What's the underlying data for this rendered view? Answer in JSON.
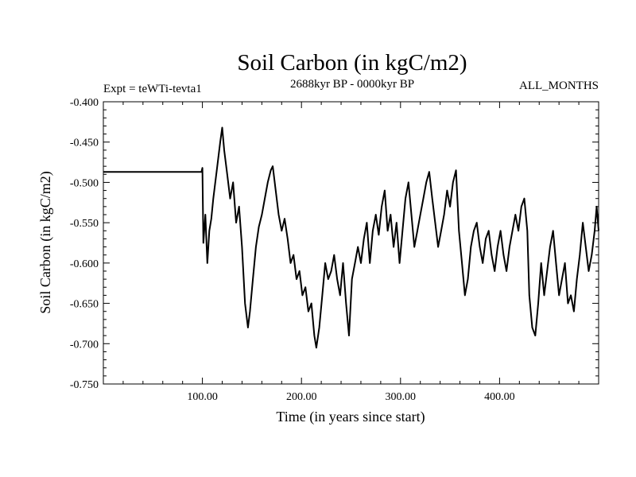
{
  "chart_data": {
    "type": "line",
    "title": "Soil Carbon (in kgC/m2)",
    "subtitle_left": "Expt = teWTi-tevta1",
    "subtitle_center": "2688kyr BP - 0000kyr BP",
    "subtitle_right": "ALL_MONTHS",
    "xlabel": "Time (in years since start)",
    "ylabel": "Soil Carbon (in kgC/m2)",
    "xlim": [
      0,
      500
    ],
    "ylim": [
      -0.75,
      -0.4
    ],
    "x_ticks": [
      100,
      200,
      300,
      400
    ],
    "x_tick_labels": [
      "100.00",
      "200.00",
      "300.00",
      "400.00"
    ],
    "y_ticks": [
      -0.4,
      -0.45,
      -0.5,
      -0.55,
      -0.6,
      -0.65,
      -0.7,
      -0.75
    ],
    "y_tick_labels": [
      "-0.400",
      "-0.450",
      "-0.500",
      "-0.550",
      "-0.600",
      "-0.650",
      "-0.700",
      "-0.750"
    ],
    "series": [
      {
        "name": "Soil Carbon",
        "x": [
          0,
          99,
          100,
          101,
          103,
          105,
          107,
          109,
          111,
          113,
          115,
          118,
          120,
          122,
          125,
          128,
          131,
          134,
          137,
          140,
          143,
          146,
          148,
          151,
          154,
          157,
          160,
          163,
          166,
          169,
          171,
          174,
          177,
          180,
          183,
          186,
          189,
          192,
          195,
          198,
          201,
          204,
          207,
          210,
          213,
          215,
          218,
          221,
          224,
          227,
          230,
          233,
          236,
          239,
          242,
          245,
          248,
          251,
          254,
          257,
          260,
          263,
          266,
          269,
          272,
          275,
          278,
          281,
          284,
          287,
          290,
          293,
          296,
          299,
          302,
          305,
          308,
          311,
          314,
          317,
          320,
          323,
          326,
          329,
          332,
          335,
          338,
          341,
          344,
          347,
          350,
          353,
          356,
          359,
          362,
          365,
          368,
          371,
          374,
          377,
          380,
          383,
          386,
          389,
          392,
          395,
          398,
          401,
          404,
          407,
          410,
          413,
          416,
          419,
          422,
          425,
          428,
          430,
          433,
          436,
          439,
          442,
          445,
          448,
          451,
          454,
          457,
          460,
          463,
          466,
          469,
          472,
          475,
          478,
          481,
          484,
          487,
          490,
          493,
          496,
          498,
          500
        ],
        "values": [
          -0.487,
          -0.487,
          -0.482,
          -0.575,
          -0.54,
          -0.6,
          -0.56,
          -0.545,
          -0.52,
          -0.5,
          -0.48,
          -0.45,
          -0.432,
          -0.46,
          -0.49,
          -0.52,
          -0.5,
          -0.55,
          -0.53,
          -0.58,
          -0.65,
          -0.68,
          -0.66,
          -0.62,
          -0.58,
          -0.555,
          -0.54,
          -0.52,
          -0.5,
          -0.485,
          -0.48,
          -0.51,
          -0.54,
          -0.56,
          -0.545,
          -0.57,
          -0.6,
          -0.59,
          -0.62,
          -0.61,
          -0.64,
          -0.63,
          -0.66,
          -0.65,
          -0.69,
          -0.705,
          -0.68,
          -0.64,
          -0.6,
          -0.62,
          -0.61,
          -0.59,
          -0.62,
          -0.64,
          -0.6,
          -0.65,
          -0.69,
          -0.62,
          -0.6,
          -0.58,
          -0.6,
          -0.57,
          -0.55,
          -0.6,
          -0.56,
          -0.54,
          -0.565,
          -0.53,
          -0.51,
          -0.56,
          -0.54,
          -0.58,
          -0.55,
          -0.6,
          -0.56,
          -0.52,
          -0.5,
          -0.54,
          -0.58,
          -0.56,
          -0.54,
          -0.52,
          -0.5,
          -0.487,
          -0.52,
          -0.55,
          -0.58,
          -0.56,
          -0.54,
          -0.51,
          -0.53,
          -0.5,
          -0.485,
          -0.56,
          -0.6,
          -0.64,
          -0.62,
          -0.58,
          -0.56,
          -0.55,
          -0.58,
          -0.6,
          -0.57,
          -0.56,
          -0.59,
          -0.61,
          -0.58,
          -0.56,
          -0.59,
          -0.61,
          -0.58,
          -0.56,
          -0.54,
          -0.56,
          -0.53,
          -0.52,
          -0.56,
          -0.64,
          -0.68,
          -0.69,
          -0.65,
          -0.6,
          -0.64,
          -0.61,
          -0.58,
          -0.56,
          -0.6,
          -0.64,
          -0.62,
          -0.6,
          -0.65,
          -0.64,
          -0.66,
          -0.62,
          -0.59,
          -0.55,
          -0.58,
          -0.61,
          -0.59,
          -0.56,
          -0.53,
          -0.56
        ]
      }
    ]
  }
}
